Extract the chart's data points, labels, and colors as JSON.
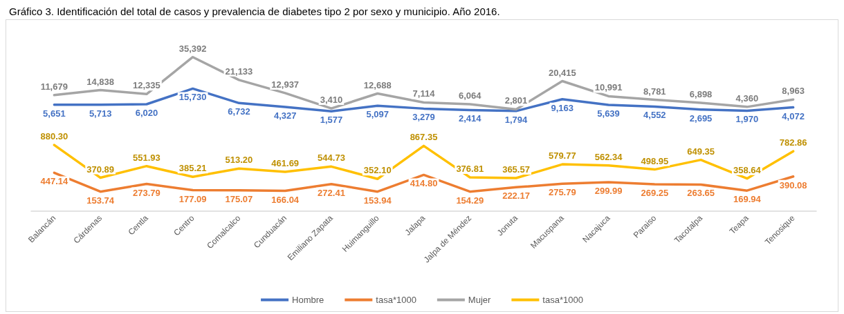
{
  "chart_data": [
    {
      "type": "line",
      "title": "Gráfico 3. Identificación del total de casos y prevalencia de diabetes tipo 2 por sexo y municipio. Año 2016.",
      "categories": [
        null,
        null,
        null,
        null,
        null,
        null,
        null,
        null,
        null,
        null,
        null,
        null,
        null,
        null,
        null,
        null,
        null
      ],
      "series": [
        {
          "name": "Hombre",
          "color": "#4472c4",
          "values": [
            5651,
            5713,
            6020,
            15730,
            6732,
            4327,
            1577,
            5097,
            3279,
            2414,
            1794,
            9163,
            5639,
            4552,
            2695,
            1970,
            4072
          ],
          "value_labels": [
            "5,651",
            "5,713",
            "6,020",
            "15,730",
            "6,732",
            "4,327",
            "1,577",
            "5,097",
            "3,279",
            "2,414",
            "1,794",
            "9,163",
            "5,639",
            "4,552",
            "2,695",
            "1,970",
            "4,072"
          ]
        },
        {
          "name": "Mujer",
          "color": "#a5a5a5",
          "values": [
            11679,
            14838,
            12335,
            35392,
            21133,
            12937,
            3410,
            12688,
            7114,
            6064,
            2801,
            20415,
            10991,
            8781,
            6898,
            4360,
            8963
          ],
          "value_labels": [
            "11,679",
            "14,838",
            "12,335",
            "35,392",
            "21,133",
            "12,937",
            "3,410",
            "12,688",
            "7,114",
            "6,064",
            "2,801",
            "20,415",
            "10,991",
            "8,781",
            "6,898",
            "4,360",
            "8,963"
          ]
        }
      ],
      "legend": "bottom",
      "marker": "none",
      "line_style": "solid",
      "tick_labels": false
    },
    {
      "type": "line",
      "categories": [
        "Balancán",
        "Cárdenas",
        "Centla",
        "Centro",
        "Comalcalco",
        "Cunduacán",
        "Emiliano Zapata",
        "Huimanguillo",
        "Jalapa",
        "Jalpa de Méndez",
        "Jonuta",
        "Macuspana",
        "Nacajuca",
        "Paraiso",
        "Tacotalpa",
        "Teapa",
        "Tenosique"
      ],
      "series": [
        {
          "name": "tasa*1000",
          "color": "#ed7d31",
          "values": [
            447.14,
            153.74,
            273.79,
            177.09,
            175.07,
            166.04,
            272.41,
            153.94,
            414.8,
            154.29,
            222.17,
            275.79,
            299.99,
            269.25,
            263.65,
            169.94,
            390.08
          ],
          "value_labels": [
            "447.14",
            "153.74",
            "273.79",
            "177.09",
            "175.07",
            "166.04",
            "272.41",
            "153.94",
            "414.80",
            "154.29",
            "222.17",
            "275.79",
            "299.99",
            "269.25",
            "263.65",
            "169.94",
            "390.08"
          ]
        },
        {
          "name": "tasa*1000",
          "color": "#ffc000",
          "values": [
            880.3,
            370.89,
            551.93,
            385.21,
            513.2,
            461.69,
            544.73,
            352.1,
            867.35,
            376.81,
            365.57,
            579.77,
            562.34,
            498.95,
            649.35,
            358.64,
            782.86
          ],
          "value_labels": [
            "880.30",
            "370.89",
            "551.93",
            "385.21",
            "513.20",
            "461.69",
            "544.73",
            "352.10",
            "867.35",
            "376.81",
            "365.57",
            "579.77",
            "562.34",
            "498.95",
            "649.35",
            "358.64",
            "782.86"
          ]
        }
      ],
      "legend": "bottom",
      "marker": "none",
      "line_style": "solid",
      "tick_labels": "x"
    }
  ]
}
